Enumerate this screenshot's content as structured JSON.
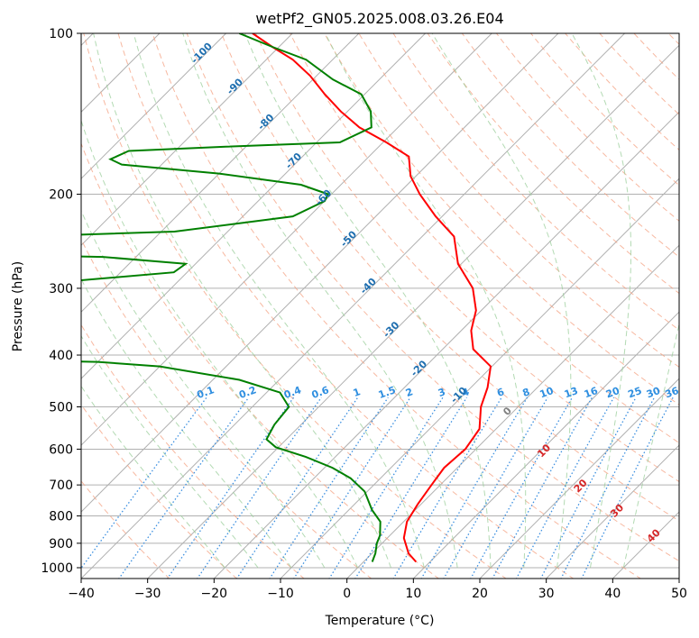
{
  "chart_data": {
    "type": "line",
    "subtype": "skew-t log-p",
    "title": "wetPf2_GN05.2025.008.03.26.E04",
    "xlabel": "Temperature (°C)",
    "ylabel": "Pressure (hPa)",
    "xlim": [
      -40,
      50
    ],
    "ylim": [
      1050,
      100
    ],
    "y_scale": "log",
    "grid": true,
    "x_ticks": [
      -40,
      -30,
      -20,
      -10,
      0,
      10,
      20,
      30,
      40,
      50
    ],
    "y_ticks": [
      100,
      200,
      300,
      400,
      500,
      600,
      700,
      800,
      900,
      1000
    ],
    "series": [
      {
        "kind": "temperature",
        "color": "#ff0000",
        "points": [
          [
            7.9,
            975
          ],
          [
            5.5,
            940
          ],
          [
            2.5,
            880
          ],
          [
            0.5,
            820
          ],
          [
            -0.5,
            760
          ],
          [
            -1.3,
            700
          ],
          [
            -2.0,
            650
          ],
          [
            -1.6,
            600
          ],
          [
            -2.5,
            550
          ],
          [
            -5.6,
            500
          ],
          [
            -7.5,
            460
          ],
          [
            -10.2,
            420
          ],
          [
            -15.4,
            390
          ],
          [
            -18.5,
            360
          ],
          [
            -20.8,
            330
          ],
          [
            -24.6,
            300
          ],
          [
            -30.5,
            270
          ],
          [
            -35.2,
            240
          ],
          [
            -41.0,
            220
          ],
          [
            -46.7,
            200
          ],
          [
            -50.8,
            185
          ],
          [
            -54.0,
            170
          ],
          [
            -59.5,
            160
          ],
          [
            -65.8,
            150
          ],
          [
            -71.0,
            140
          ],
          [
            -76.0,
            130
          ],
          [
            -81.0,
            120
          ],
          [
            -86.0,
            112
          ],
          [
            -91.0,
            106
          ],
          [
            -96.0,
            100
          ]
        ]
      },
      {
        "kind": "dewpoint",
        "color": "#008000",
        "points": [
          [
            1.3,
            975
          ],
          [
            0.5,
            940
          ],
          [
            -0.8,
            900
          ],
          [
            -1.5,
            870
          ],
          [
            -3.5,
            820
          ],
          [
            -6.5,
            780
          ],
          [
            -10.4,
            720
          ],
          [
            -14.5,
            680
          ],
          [
            -18.8,
            650
          ],
          [
            -24.5,
            620
          ],
          [
            -30.4,
            595
          ],
          [
            -33.0,
            575
          ],
          [
            -34.0,
            540
          ],
          [
            -34.5,
            500
          ],
          [
            -38.0,
            470
          ],
          [
            -46.0,
            445
          ],
          [
            -60.0,
            420
          ],
          [
            -70.0,
            412
          ],
          [
            -78.0,
            410
          ],
          [
            -100.0,
            295
          ],
          [
            -85.0,
            290
          ],
          [
            -72.0,
            280
          ],
          [
            -71.5,
            270
          ],
          [
            -85.0,
            262
          ],
          [
            -110.0,
            258
          ],
          [
            -100.0,
            240
          ],
          [
            -78.0,
            235
          ],
          [
            -62.5,
            220
          ],
          [
            -60.0,
            206
          ],
          [
            -60.5,
            200
          ],
          [
            -66.0,
            192
          ],
          [
            -80.0,
            183
          ],
          [
            -96.0,
            176
          ],
          [
            -98.5,
            172
          ],
          [
            -97.0,
            166
          ],
          [
            -83.0,
            163
          ],
          [
            -66.5,
            160
          ],
          [
            -64.0,
            150
          ],
          [
            -66.5,
            140
          ],
          [
            -70.5,
            130
          ],
          [
            -77.0,
            122
          ],
          [
            -84.0,
            112
          ],
          [
            -91.0,
            106
          ],
          [
            -98.0,
            100
          ]
        ]
      }
    ],
    "isotherm_labels": [
      "-100",
      "-90",
      "-80",
      "-70",
      "-60",
      "-50",
      "-40",
      "-30",
      "-20",
      "-10"
    ],
    "dry_adiabat_labels": [
      "0",
      "10",
      "20",
      "30",
      "40"
    ],
    "mixing_ratio_labels": [
      "0.1",
      "0.2",
      "0.4",
      "0.6",
      "1",
      "1.5",
      "2",
      "3",
      "4",
      "6",
      "8",
      "10",
      "13",
      "16",
      "20",
      "25",
      "30",
      "36"
    ],
    "colors": {
      "temperature": "#ff0000",
      "dewpoint": "#008000",
      "grid": "#b0b0b0",
      "dry_adiabat": "#f4a080",
      "moist_adiabat": "#9acd9a",
      "mixing_ratio": "#3b8fe0",
      "isotherm_label": "#1f6fb0",
      "adiabat_label": "#d62728"
    }
  }
}
